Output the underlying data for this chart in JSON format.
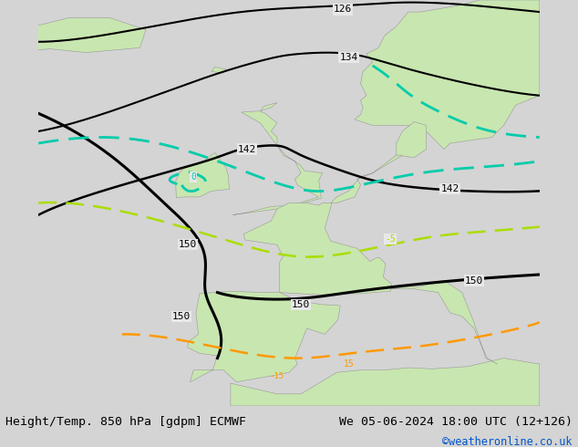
{
  "title_left": "Height/Temp. 850 hPa [gdpm] ECMWF",
  "title_right": "We 05-06-2024 18:00 UTC (12+126)",
  "copyright": "©weatheronline.co.uk",
  "sea_color": "#e8e8e8",
  "land_color": "#c8e6b0",
  "coast_color": "#999999",
  "contour_color_black": "#000000",
  "contour_color_cyan": "#00ccaa",
  "contour_color_ygreen": "#aadd00",
  "contour_color_orange": "#ff9900",
  "title_fontsize": 9.5,
  "copyright_fontsize": 8.5,
  "copyright_color": "#0055cc",
  "bar_color": "#d4d4d4",
  "extent": [
    -22,
    20,
    34,
    68
  ],
  "fig_width": 6.34,
  "fig_height": 4.9,
  "dpi": 100
}
